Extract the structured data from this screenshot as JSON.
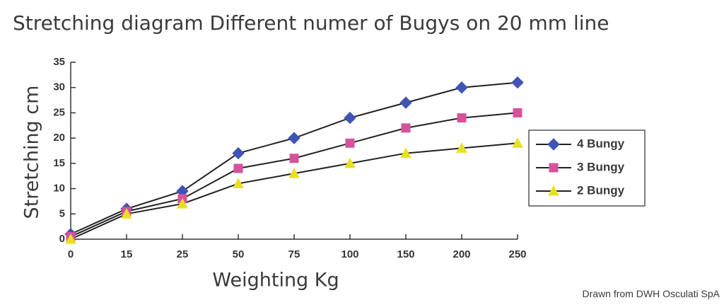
{
  "chart_data": {
    "type": "line",
    "title": "Stretching diagram   Different numer of Bugys on 20 mm line",
    "x_label": "Weighting Kg",
    "y_label": "Stretching cm",
    "source": "Drawn from DWH Osculati SpA",
    "categories": [
      "0",
      "15",
      "25",
      "50",
      "75",
      "100",
      "150",
      "200",
      "250"
    ],
    "series": [
      {
        "name": "4 Bungy",
        "color": "#3f54b5",
        "marker": "diamond",
        "values": [
          1,
          6,
          9.5,
          17,
          20,
          24,
          27,
          30,
          31
        ]
      },
      {
        "name": "3 Bungy",
        "color": "#d6529b",
        "marker": "square",
        "values": [
          0.5,
          5.5,
          8,
          14,
          16,
          19,
          22,
          24,
          25
        ]
      },
      {
        "name": "2 Bungy",
        "color": "#e8e020",
        "marker": "triangle",
        "values": [
          0,
          5,
          7,
          11,
          13,
          15,
          17,
          18,
          19
        ]
      }
    ],
    "ylim": [
      0,
      35
    ],
    "yticks": [
      0,
      5,
      10,
      15,
      20,
      25,
      30,
      35
    ],
    "legend": "right"
  }
}
